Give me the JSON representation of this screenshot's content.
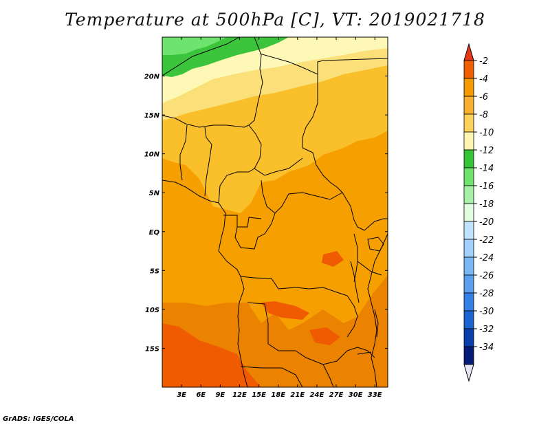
{
  "map": {
    "title": "Temperature at 500hPa [C], VT: 2019021718",
    "footer": "GrADS: IGES/COLA",
    "lon_ticks": [
      "3E",
      "6E",
      "9E",
      "12E",
      "15E",
      "18E",
      "21E",
      "24E",
      "27E",
      "30E",
      "33E"
    ],
    "lat_ticks": [
      "20N",
      "15N",
      "10N",
      "5N",
      "EQ",
      "5S",
      "10S",
      "15S"
    ],
    "lon_range": [
      0,
      35
    ],
    "lat_range": [
      -20,
      25
    ],
    "colors": {
      "bg": "#eb8200",
      "c4": "#f5a000",
      "c6": "#fac02b",
      "c8": "#fbe07a",
      "c10": "#fdf8b5",
      "c12": "#3cc53c",
      "c14": "#6ee36e",
      "c2": "#f05a00"
    }
  },
  "colorbar": {
    "labels": [
      "-2",
      "-4",
      "-6",
      "-8",
      "-10",
      "-12",
      "-14",
      "-16",
      "-18",
      "-20",
      "-22",
      "-24",
      "-26",
      "-28",
      "-30",
      "-32",
      "-34"
    ],
    "colors": [
      "#f06000",
      "#f59a00",
      "#f8b030",
      "#fbd35a",
      "#fdf5b0",
      "#36c436",
      "#6ee36e",
      "#a8f0a8",
      "#e0fde0",
      "#bfe2fd",
      "#a0d0fb",
      "#7ab8f5",
      "#5a9ff0",
      "#3580e6",
      "#1c63d0",
      "#0c3fae",
      "#061a7a"
    ],
    "tip_top_color": "#e8381a",
    "tip_bottom_color": "#e6e6f8"
  }
}
